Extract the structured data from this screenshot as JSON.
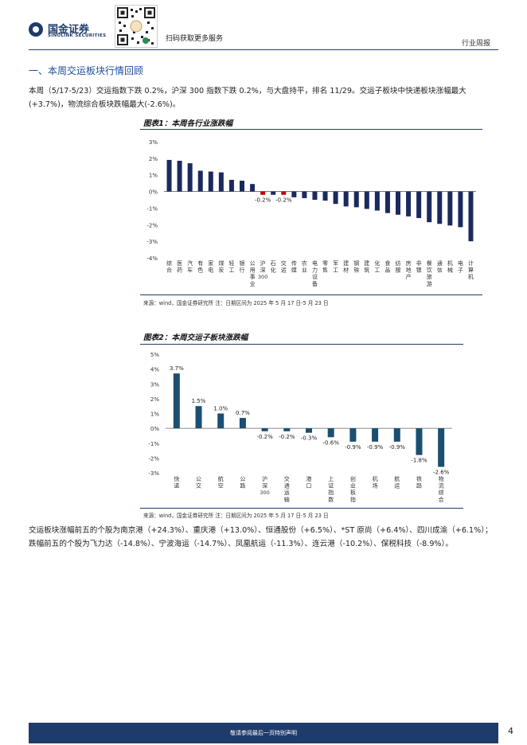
{
  "header": {
    "logo_cn": "国金证券",
    "logo_en": "SINOLINK SECURITIES",
    "qr_caption": "扫码获取更多服务",
    "report_type": "行业周报"
  },
  "section": {
    "title": "一、本周交运板块行情回顾"
  },
  "paragraph1": "本周（5/17-5/23）交运指数下跌 0.2%，沪深 300 指数下跌 0.2%，与大盘持平，排名 11/29。交运子板块中快递板块涨幅最大(+3.7%)，物流综合板块跌幅最大(-2.6%)。",
  "chart1": {
    "caption": "图表1：本周各行业涨跌幅",
    "source": "来源：wind，国金证券研究所    注：日期区间为 2025 年 5 月 17 日-5 月 23 日"
  },
  "chart2": {
    "caption": "图表2：本周交运子板块涨跌幅",
    "source": "来源：wind，国金证券研究所    注：日期区间为 2025 年 5 月 17 日-5 月 23 日"
  },
  "paragraph2": "交运板块涨幅前五的个股为南京港（+24.3%）、重庆港（+13.0%）、恒通股份（+6.5%）、*ST 原尚（+6.4%）、四川成渝（+6.1%）；跌幅前五的个股为飞力达（-14.8%）、宁波海运（-14.7%）、凤凰航运（-11.3%）、连云港（-10.2%）、保税科技（-8.9%）。",
  "footer": {
    "disclaimer": "敬请参阅最后一页特别声明",
    "page": "4"
  },
  "colors": {
    "bar": "#1a2a5e",
    "highlight": "#c00000",
    "sub_bar": "#1b4f72",
    "accent": "#1f3b6b"
  },
  "chart_data": [
    {
      "type": "bar",
      "title": "图表1：本周各行业涨跌幅",
      "categories": [
        "综合",
        "医药",
        "汽车",
        "有色",
        "家电",
        "煤炭",
        "轻工",
        "银行",
        "公用事业",
        "沪深300",
        "石化",
        "交运",
        "传媒",
        "农业",
        "电力设备",
        "零售",
        "军工",
        "建材",
        "钢铁",
        "建筑",
        "化工",
        "食品",
        "纺服",
        "房地产",
        "非银",
        "餐饮旅游",
        "通信",
        "机械",
        "电子",
        "计算机"
      ],
      "values": [
        1.9,
        1.85,
        1.7,
        1.25,
        1.2,
        1.15,
        0.7,
        0.65,
        0.45,
        -0.2,
        -0.2,
        -0.2,
        -0.35,
        -0.4,
        -0.5,
        -0.55,
        -0.75,
        -0.9,
        -0.95,
        -1.05,
        -1.15,
        -1.3,
        -1.4,
        -1.5,
        -1.6,
        -1.85,
        -1.95,
        -2.05,
        -2.15,
        -3.0
      ],
      "highlight": [
        "沪深300",
        "交运"
      ],
      "data_labels": {
        "沪深300": "-0.2%",
        "交运": "-0.2%"
      },
      "ylim": [
        -4,
        3
      ],
      "yticks": [
        "3%",
        "2%",
        "1%",
        "0%",
        "-1%",
        "-2%",
        "-3%",
        "-4%"
      ],
      "ytick_values": [
        3,
        2,
        1,
        0,
        -1,
        -2,
        -3,
        -4
      ]
    },
    {
      "type": "bar",
      "title": "图表2：本周交运子板块涨跌幅",
      "categories": [
        "快递",
        "公交",
        "航空",
        "公路",
        "沪深300",
        "交通运输",
        "港口",
        "上证指数",
        "创业板指",
        "机场",
        "航运",
        "铁路",
        "物流综合"
      ],
      "values": [
        3.7,
        1.5,
        1.0,
        0.7,
        -0.2,
        -0.2,
        -0.3,
        -0.6,
        -0.9,
        -0.9,
        -0.9,
        -1.8,
        -2.6
      ],
      "data_labels": [
        "3.7%",
        "1.5%",
        "1.0%",
        "0.7%",
        "-0.2%",
        "-0.2%",
        "-0.3%",
        "-0.6%",
        "-0.9%",
        "-0.9%",
        "-0.9%",
        "-1.8%",
        "-2.6%"
      ],
      "ylim": [
        -3,
        5
      ],
      "yticks": [
        "5%",
        "4%",
        "3%",
        "2%",
        "1%",
        "0%",
        "-1%",
        "-2%",
        "-3%"
      ],
      "ytick_values": [
        5,
        4,
        3,
        2,
        1,
        0,
        -1,
        -2,
        -3
      ]
    }
  ]
}
